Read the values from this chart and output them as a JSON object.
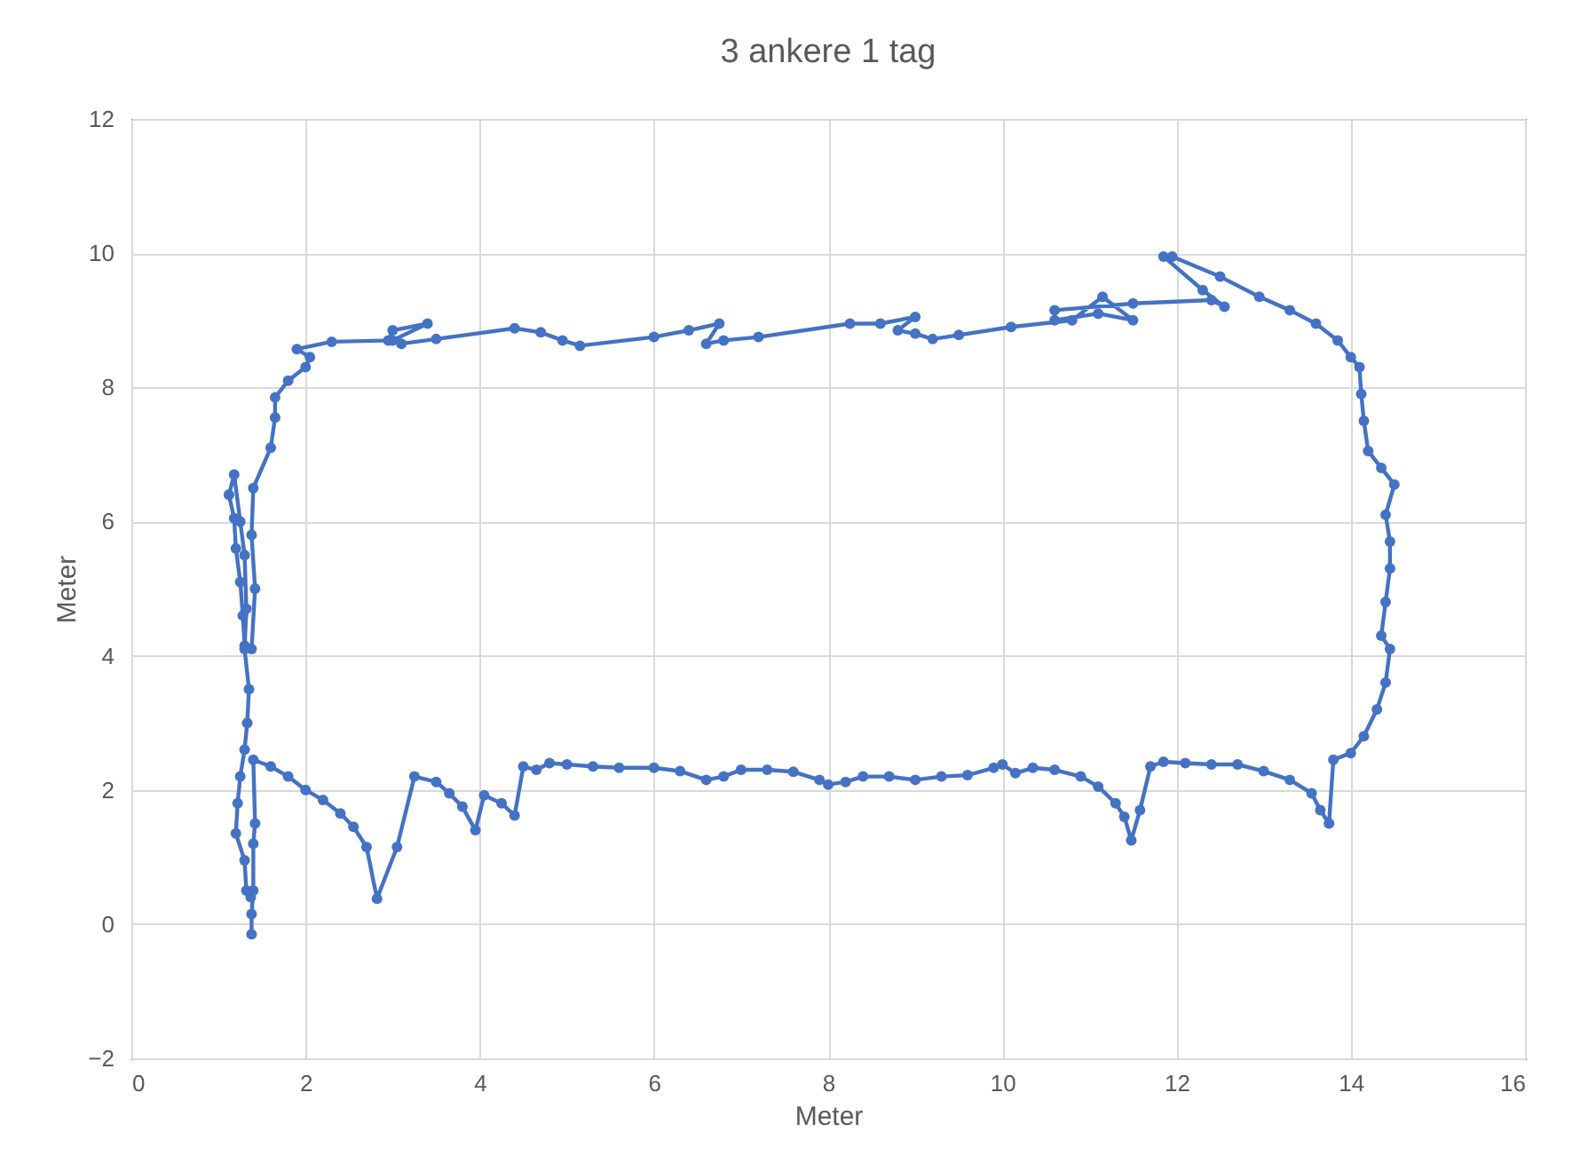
{
  "chart_data": {
    "type": "line",
    "title": "3 ankere 1 tag",
    "xlabel": "Meter",
    "ylabel": "Meter",
    "x": [
      1.38,
      1.38,
      1.4,
      1.4,
      1.42,
      1.4,
      1.6,
      1.8,
      2.0,
      2.2,
      2.4,
      2.55,
      2.7,
      2.82,
      3.05,
      3.25,
      3.5,
      3.65,
      3.8,
      3.95,
      4.05,
      4.25,
      4.4,
      4.5,
      4.65,
      4.8,
      5.0,
      5.3,
      5.6,
      6.0,
      6.3,
      6.6,
      6.8,
      7.0,
      7.3,
      7.6,
      7.9,
      8.0,
      8.2,
      8.4,
      8.7,
      9.0,
      9.3,
      9.6,
      9.9,
      10.0,
      10.15,
      10.35,
      10.6,
      10.9,
      11.1,
      11.3,
      11.4,
      11.48,
      11.58,
      11.7,
      11.85,
      12.1,
      12.4,
      12.7,
      13.0,
      13.3,
      13.55,
      13.65,
      13.75,
      13.8,
      14.0,
      14.15,
      14.3,
      14.4,
      14.45,
      14.35,
      14.4,
      14.45,
      14.45,
      14.4,
      14.5,
      14.35,
      14.2,
      14.15,
      14.12,
      14.1,
      14.0,
      13.85,
      13.6,
      13.3,
      12.95,
      12.5,
      11.95,
      11.85,
      12.3,
      12.55,
      12.4,
      11.5,
      10.6,
      10.6,
      11.1,
      11.5,
      11.15,
      10.8,
      10.1,
      9.5,
      9.2,
      9.0,
      8.8,
      9.0,
      8.6,
      8.25,
      7.2,
      6.8,
      6.6,
      6.75,
      6.4,
      6.0,
      5.15,
      4.95,
      4.7,
      4.4,
      3.5,
      3.1,
      2.95,
      3.0,
      3.4,
      3.0,
      2.3,
      1.9,
      2.05,
      2.0,
      1.8,
      1.65,
      1.65,
      1.6,
      1.4,
      1.38,
      1.42,
      1.38,
      1.3,
      1.28,
      1.25,
      1.2,
      1.18,
      1.12,
      1.18,
      1.25,
      1.3,
      1.32,
      1.3,
      1.35,
      1.33,
      1.3,
      1.25,
      1.22,
      1.2,
      1.3,
      1.32,
      1.37
    ],
    "series": [
      {
        "color": "#4472c4",
        "values": [
          -0.15,
          0.15,
          0.5,
          1.2,
          1.5,
          2.45,
          2.35,
          2.2,
          2.0,
          1.85,
          1.65,
          1.45,
          1.15,
          0.38,
          1.15,
          2.2,
          2.12,
          1.95,
          1.75,
          1.4,
          1.92,
          1.8,
          1.62,
          2.35,
          2.3,
          2.4,
          2.38,
          2.35,
          2.33,
          2.33,
          2.28,
          2.15,
          2.2,
          2.3,
          2.3,
          2.27,
          2.15,
          2.08,
          2.12,
          2.2,
          2.2,
          2.15,
          2.2,
          2.22,
          2.33,
          2.38,
          2.25,
          2.33,
          2.3,
          2.2,
          2.05,
          1.8,
          1.6,
          1.25,
          1.7,
          2.35,
          2.42,
          2.4,
          2.38,
          2.38,
          2.28,
          2.15,
          1.95,
          1.7,
          1.5,
          2.45,
          2.55,
          2.8,
          3.2,
          3.6,
          4.1,
          4.3,
          4.8,
          5.3,
          5.7,
          6.1,
          6.55,
          6.8,
          7.05,
          7.5,
          7.9,
          8.3,
          8.45,
          8.7,
          8.95,
          9.15,
          9.35,
          9.65,
          9.95,
          9.95,
          9.45,
          9.2,
          9.3,
          9.25,
          9.15,
          9.0,
          9.1,
          9.0,
          9.35,
          9.0,
          8.9,
          8.78,
          8.72,
          8.8,
          8.85,
          9.05,
          8.95,
          8.95,
          8.75,
          8.7,
          8.65,
          8.95,
          8.85,
          8.75,
          8.62,
          8.7,
          8.82,
          8.88,
          8.72,
          8.65,
          8.7,
          8.85,
          8.95,
          8.7,
          8.68,
          8.57,
          8.45,
          8.3,
          8.1,
          7.85,
          7.55,
          7.1,
          6.5,
          5.8,
          5.0,
          4.1,
          4.15,
          4.6,
          5.1,
          5.6,
          6.05,
          6.4,
          6.7,
          6.0,
          5.5,
          4.7,
          4.1,
          3.5,
          3.0,
          2.6,
          2.2,
          1.8,
          1.35,
          0.95,
          0.5,
          0.4
        ]
      }
    ],
    "xlim": [
      0,
      16
    ],
    "xticks": [
      0,
      2,
      4,
      6,
      8,
      10,
      12,
      14,
      16
    ],
    "ylim": [
      -2,
      12
    ],
    "yticks": [
      -2,
      0,
      2,
      4,
      6,
      8,
      10,
      12
    ],
    "grid": true,
    "marker": "circle",
    "line_style": "solid"
  }
}
